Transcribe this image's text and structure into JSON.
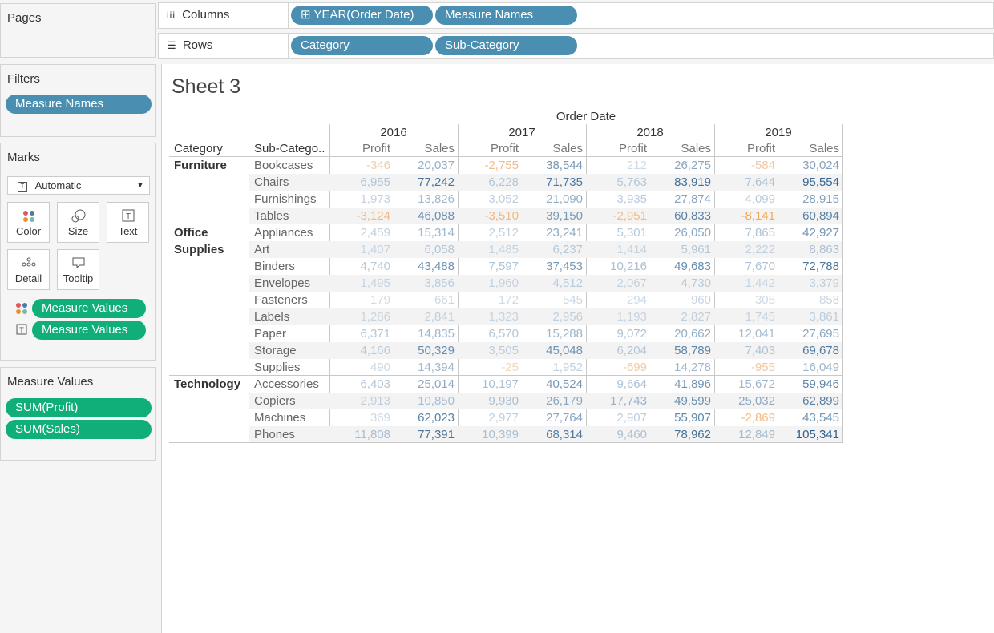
{
  "pages": {
    "title": "Pages"
  },
  "shelves": {
    "columns": {
      "label": "Columns",
      "pills": [
        "⊞ YEAR(Order Date)",
        "Measure Names"
      ]
    },
    "rows": {
      "label": "Rows",
      "pills": [
        "Category",
        "Sub-Category"
      ]
    }
  },
  "filters": {
    "title": "Filters",
    "pills": [
      "Measure Names"
    ]
  },
  "marks": {
    "title": "Marks",
    "type": "Automatic",
    "buttons": [
      "Color",
      "Size",
      "Text",
      "Detail",
      "Tooltip"
    ],
    "pills": [
      "Measure Values",
      "Measure Values"
    ]
  },
  "measure_values": {
    "title": "Measure Values",
    "pills": [
      "SUM(Profit)",
      "SUM(Sales)"
    ]
  },
  "sheet": {
    "title": "Sheet 3",
    "order_date_label": "Order Date",
    "years": [
      "2016",
      "2017",
      "2018",
      "2019"
    ],
    "measures": [
      "Profit",
      "Sales"
    ],
    "row_headers": [
      "Category",
      "Sub-Catego.."
    ],
    "categories": [
      {
        "name": "Furniture",
        "rows": [
          {
            "sub": "Bookcases",
            "vals": [
              "-346",
              "20,037",
              "-2,755",
              "38,544",
              "212",
              "26,275",
              "-584",
              "30,024"
            ]
          },
          {
            "sub": "Chairs",
            "vals": [
              "6,955",
              "77,242",
              "6,228",
              "71,735",
              "5,763",
              "83,919",
              "7,644",
              "95,554"
            ]
          },
          {
            "sub": "Furnishings",
            "vals": [
              "1,973",
              "13,826",
              "3,052",
              "21,090",
              "3,935",
              "27,874",
              "4,099",
              "28,915"
            ]
          },
          {
            "sub": "Tables",
            "vals": [
              "-3,124",
              "46,088",
              "-3,510",
              "39,150",
              "-2,951",
              "60,833",
              "-8,141",
              "60,894"
            ]
          }
        ]
      },
      {
        "name": "Office Supplies",
        "rows": [
          {
            "sub": "Appliances",
            "vals": [
              "2,459",
              "15,314",
              "2,512",
              "23,241",
              "5,301",
              "26,050",
              "7,865",
              "42,927"
            ]
          },
          {
            "sub": "Art",
            "vals": [
              "1,407",
              "6,058",
              "1,485",
              "6,237",
              "1,414",
              "5,961",
              "2,222",
              "8,863"
            ]
          },
          {
            "sub": "Binders",
            "vals": [
              "4,740",
              "43,488",
              "7,597",
              "37,453",
              "10,216",
              "49,683",
              "7,670",
              "72,788"
            ]
          },
          {
            "sub": "Envelopes",
            "vals": [
              "1,495",
              "3,856",
              "1,960",
              "4,512",
              "2,067",
              "4,730",
              "1,442",
              "3,379"
            ]
          },
          {
            "sub": "Fasteners",
            "vals": [
              "179",
              "661",
              "172",
              "545",
              "294",
              "960",
              "305",
              "858"
            ]
          },
          {
            "sub": "Labels",
            "vals": [
              "1,286",
              "2,841",
              "1,323",
              "2,956",
              "1,193",
              "2,827",
              "1,745",
              "3,861"
            ]
          },
          {
            "sub": "Paper",
            "vals": [
              "6,371",
              "14,835",
              "6,570",
              "15,288",
              "9,072",
              "20,662",
              "12,041",
              "27,695"
            ]
          },
          {
            "sub": "Storage",
            "vals": [
              "4,166",
              "50,329",
              "3,505",
              "45,048",
              "6,204",
              "58,789",
              "7,403",
              "69,678"
            ]
          },
          {
            "sub": "Supplies",
            "vals": [
              "490",
              "14,394",
              "-25",
              "1,952",
              "-699",
              "14,278",
              "-955",
              "16,049"
            ]
          }
        ]
      },
      {
        "name": "Technology",
        "rows": [
          {
            "sub": "Accessories",
            "vals": [
              "6,403",
              "25,014",
              "10,197",
              "40,524",
              "9,664",
              "41,896",
              "15,672",
              "59,946"
            ]
          },
          {
            "sub": "Copiers",
            "vals": [
              "2,913",
              "10,850",
              "9,930",
              "26,179",
              "17,743",
              "49,599",
              "25,032",
              "62,899"
            ]
          },
          {
            "sub": "Machines",
            "vals": [
              "369",
              "62,023",
              "2,977",
              "27,764",
              "2,907",
              "55,907",
              "-2,869",
              "43,545"
            ]
          },
          {
            "sub": "Phones",
            "vals": [
              "11,808",
              "77,391",
              "10,399",
              "68,314",
              "9,460",
              "78,962",
              "12,849",
              "105,341"
            ]
          }
        ]
      }
    ]
  },
  "colors": {
    "pill_blue": "#4a8fb1",
    "pill_green": "#10ae79",
    "negative_scale": "#f0a860",
    "positive_scale": "#2e5f8a"
  }
}
